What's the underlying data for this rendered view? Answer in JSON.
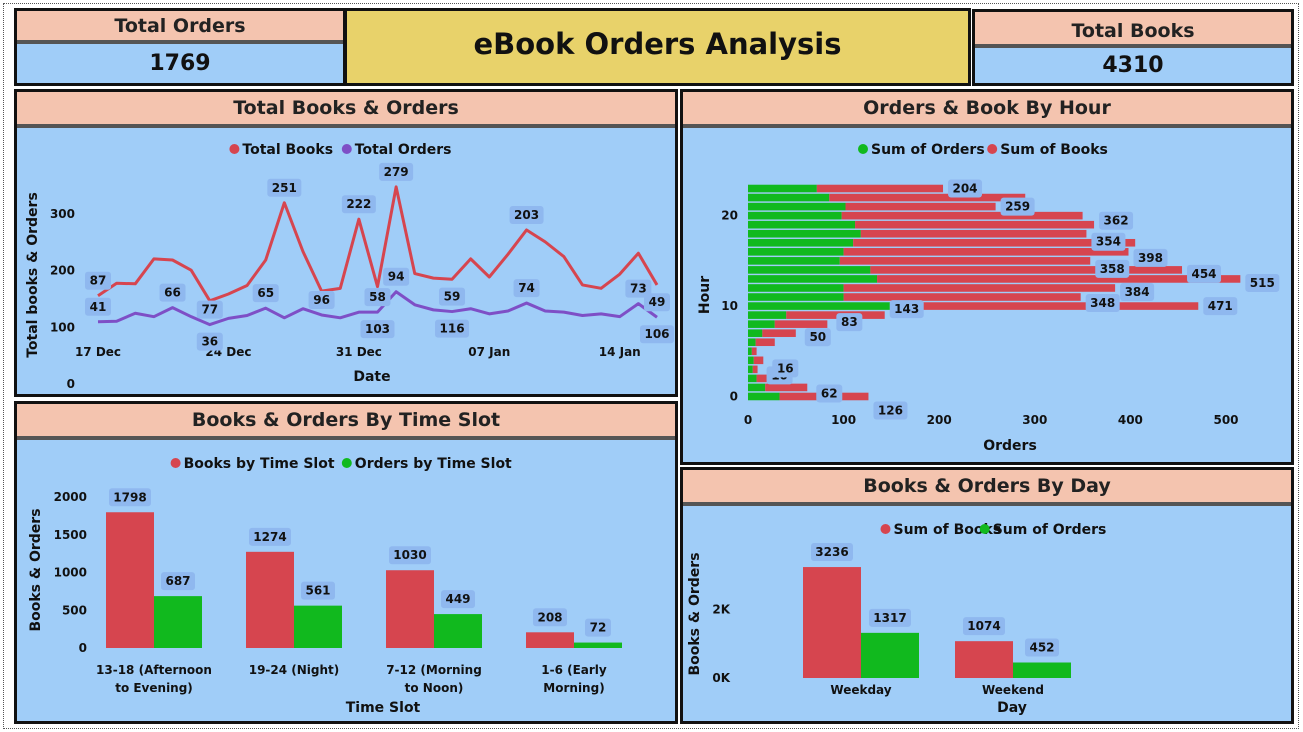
{
  "kpis": {
    "total_orders": {
      "label": "Total Orders",
      "value": "1769"
    },
    "total_books": {
      "label": "Total Books",
      "value": "4310"
    }
  },
  "dashboard_title": "eBook Orders Analysis",
  "panels": {
    "daily": {
      "title": "Total Books & Orders"
    },
    "hour": {
      "title": "Orders & Book By Hour"
    },
    "slot": {
      "title": "Books & Orders By Time Slot"
    },
    "day": {
      "title": "Books & Orders By Day"
    }
  },
  "colors": {
    "red": "#d6454f",
    "purple": "#7e4fc6",
    "green": "#11b91e",
    "panel_bg": "#a0cdf8",
    "header_bg": "#f4c4af",
    "title_bg": "#e8d26a"
  },
  "chart_data": [
    {
      "id": "daily",
      "type": "line",
      "xlabel": "Date",
      "ylabel": "Total books & Orders",
      "ylim": [
        0,
        300
      ],
      "yticks": [
        "0",
        "100",
        "200",
        "300"
      ],
      "xticks": [
        {
          "label": "17 Dec",
          "index": 0
        },
        {
          "label": "24 Dec",
          "index": 7
        },
        {
          "label": "31 Dec",
          "index": 14
        },
        {
          "label": "07 Jan",
          "index": 21
        },
        {
          "label": "14 Jan",
          "index": 28
        }
      ],
      "legend": "top-center",
      "series": [
        {
          "name": "Total Books",
          "color": "#d6454f",
          "values": [
            87,
            109,
            108,
            152,
            150,
            132,
            78,
            90,
            105,
            150,
            251,
            165,
            95,
            100,
            222,
            103,
            279,
            126,
            118,
            116,
            152,
            120,
            160,
            203,
            182,
            156,
            106,
            100,
            125,
            162,
            106
          ],
          "labels": {
            "0": "87",
            "10": "251",
            "14": "222",
            "16": "279",
            "23": "203"
          }
        },
        {
          "name": "Total Orders",
          "color": "#7e4fc6",
          "values": [
            41,
            42,
            56,
            50,
            66,
            50,
            36,
            47,
            52,
            65,
            48,
            64,
            53,
            48,
            58,
            58,
            94,
            71,
            62,
            59,
            64,
            55,
            60,
            74,
            60,
            58,
            52,
            55,
            50,
            73,
            49
          ],
          "labels": {
            "0": "41",
            "4": "66",
            "6": "36|77",
            "9": "65",
            "12": "96",
            "15": "103|58",
            "16": "94",
            "19": "116|59",
            "23": "74",
            "29": "73",
            "30": "106|49"
          }
        }
      ]
    },
    {
      "id": "hour",
      "type": "bar",
      "orientation": "horizontal",
      "xlabel": "Orders",
      "ylabel": "Hour",
      "xlim": [
        0,
        500
      ],
      "xticks": [
        "0",
        "100",
        "200",
        "300",
        "400",
        "500"
      ],
      "yticks": [
        "0",
        "10",
        "20"
      ],
      "legend": "top-center",
      "categories": [
        0,
        1,
        2,
        3,
        4,
        5,
        6,
        7,
        8,
        9,
        10,
        11,
        12,
        13,
        14,
        15,
        16,
        17,
        18,
        19,
        20,
        21,
        22,
        23
      ],
      "series": [
        {
          "name": "Sum of Orders",
          "color": "#11b91e",
          "values": [
            33,
            18,
            9,
            5,
            6,
            4,
            8,
            15,
            28,
            40,
            160,
            100,
            100,
            135,
            128,
            96,
            100,
            110,
            118,
            112,
            98,
            102,
            85,
            72
          ]
        },
        {
          "name": "Sum of Books",
          "color": "#d6454f",
          "values": [
            126,
            62,
            21,
            10,
            16,
            9,
            28,
            50,
            83,
            143,
            471,
            348,
            384,
            515,
            454,
            358,
            398,
            405,
            354,
            362,
            350,
            259,
            290,
            204
          ]
        }
      ],
      "bar_labels": [
        "126",
        "62",
        "10",
        "16",
        "50",
        "83",
        "143",
        "471",
        "348",
        "384",
        "515",
        "454",
        "398",
        "358",
        "354",
        "362",
        "259",
        "204"
      ]
    },
    {
      "id": "slot",
      "type": "bar",
      "xlabel": "Time Slot",
      "ylabel": "Books & Orders",
      "ylim": [
        0,
        2000
      ],
      "yticks": [
        "0",
        "500",
        "1000",
        "1500",
        "2000"
      ],
      "legend": "top-center",
      "categories": [
        "13-18 (Afternoon to Evening)",
        "19-24 (Night)",
        "7-12 (Morning to Noon)",
        "1-6 (Early Morning)"
      ],
      "series": [
        {
          "name": "Books by Time Slot",
          "color": "#d6454f",
          "values": [
            1798,
            1274,
            1030,
            208
          ]
        },
        {
          "name": "Orders by Time Slot",
          "color": "#11b91e",
          "values": [
            687,
            561,
            449,
            72
          ]
        }
      ]
    },
    {
      "id": "day",
      "type": "bar",
      "xlabel": "Day",
      "ylabel": "Books & Orders",
      "ylim": [
        0,
        3500
      ],
      "yticks": [
        "0K",
        "2K"
      ],
      "legend": "top-center",
      "categories": [
        "Weekday",
        "Weekend"
      ],
      "series": [
        {
          "name": "Sum of Books",
          "color": "#d6454f",
          "values": [
            3236,
            1074
          ]
        },
        {
          "name": "Sum of Orders",
          "color": "#11b91e",
          "values": [
            1317,
            452
          ]
        }
      ]
    }
  ]
}
